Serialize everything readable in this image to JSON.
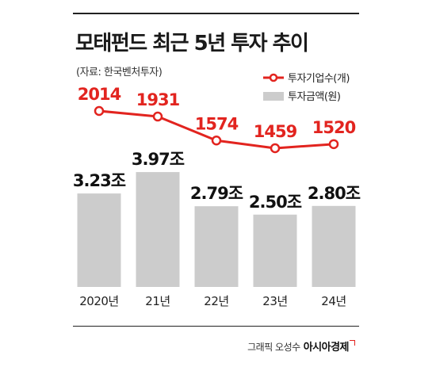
{
  "chart_data": {
    "type": "bar+line",
    "title": "모태펀드 최근 5년 투자 추이",
    "source": "(자료: 한국벤처투자)",
    "categories": [
      "2020년",
      "21년",
      "22년",
      "23년",
      "24년"
    ],
    "series": [
      {
        "name": "투자기업수(개)",
        "kind": "line",
        "values": [
          2014,
          1931,
          1574,
          1459,
          1520
        ],
        "labels": [
          "2014",
          "1931",
          "1574",
          "1459",
          "1520"
        ],
        "color": "#e2241f"
      },
      {
        "name": "투자금액(원)",
        "kind": "bar",
        "values": [
          3.23,
          3.97,
          2.79,
          2.5,
          2.8
        ],
        "labels": [
          "3.23조",
          "3.97조",
          "2.79조",
          "2.50조",
          "2.80조"
        ],
        "color": "#cccccc"
      }
    ],
    "legend_position": "top-right",
    "grid": false
  },
  "credit": {
    "author": "그래픽 오성수",
    "brand": "아시아경제"
  }
}
